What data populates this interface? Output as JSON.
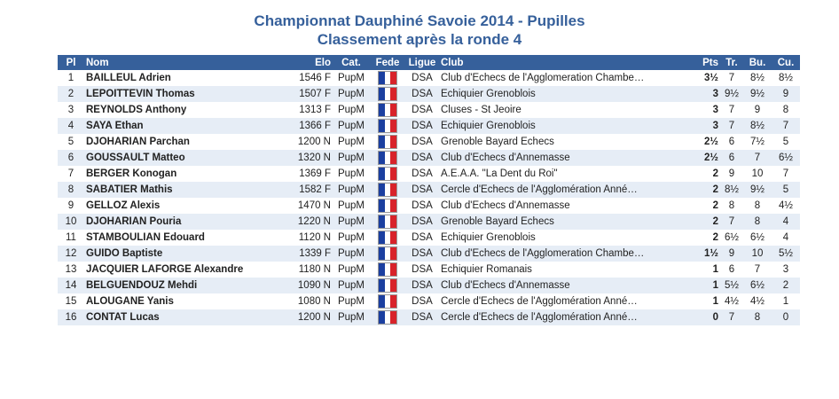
{
  "title": "Championnat Dauphiné Savoie 2014 - Pupilles",
  "subtitle": "Classement après la ronde 4",
  "headers": {
    "pl": "Pl",
    "nom": "Nom",
    "elo": "Elo",
    "cat": "Cat.",
    "fede": "Fede",
    "ligue": "Ligue",
    "club": "Club",
    "pts": "Pts",
    "tr": "Tr.",
    "bu": "Bu.",
    "cu": "Cu."
  },
  "flag_colors": [
    "#1b3fa0",
    "#ffffff",
    "#d8232a"
  ],
  "rows": [
    {
      "pl": "1",
      "nom": "BAILLEUL Adrien",
      "elo": "1546 F",
      "cat": "PupM",
      "ligue": "DSA",
      "club": "Club d'Echecs de l'Agglomeration Chambe…",
      "pts": "3½",
      "tr": "7",
      "bu": "8½",
      "cu": "8½"
    },
    {
      "pl": "2",
      "nom": "LEPOITTEVIN Thomas",
      "elo": "1507 F",
      "cat": "PupM",
      "ligue": "DSA",
      "club": "Echiquier Grenoblois",
      "pts": "3",
      "tr": "9½",
      "bu": "9½",
      "cu": "9"
    },
    {
      "pl": "3",
      "nom": "REYNOLDS Anthony",
      "elo": "1313 F",
      "cat": "PupM",
      "ligue": "DSA",
      "club": "Cluses - St Jeoire",
      "pts": "3",
      "tr": "7",
      "bu": "9",
      "cu": "8"
    },
    {
      "pl": "4",
      "nom": "SAYA Ethan",
      "elo": "1366 F",
      "cat": "PupM",
      "ligue": "DSA",
      "club": "Echiquier Grenoblois",
      "pts": "3",
      "tr": "7",
      "bu": "8½",
      "cu": "7"
    },
    {
      "pl": "5",
      "nom": "DJOHARIAN Parchan",
      "elo": "1200 N",
      "cat": "PupM",
      "ligue": "DSA",
      "club": "Grenoble Bayard Echecs",
      "pts": "2½",
      "tr": "6",
      "bu": "7½",
      "cu": "5"
    },
    {
      "pl": "6",
      "nom": "GOUSSAULT Matteo",
      "elo": "1320 N",
      "cat": "PupM",
      "ligue": "DSA",
      "club": "Club d'Echecs d'Annemasse",
      "pts": "2½",
      "tr": "6",
      "bu": "7",
      "cu": "6½"
    },
    {
      "pl": "7",
      "nom": "BERGER Konogan",
      "elo": "1369 F",
      "cat": "PupM",
      "ligue": "DSA",
      "club": "A.E.A.A. \"La Dent du Roi\"",
      "pts": "2",
      "tr": "9",
      "bu": "10",
      "cu": "7"
    },
    {
      "pl": "8",
      "nom": "SABATIER Mathis",
      "elo": "1582 F",
      "cat": "PupM",
      "ligue": "DSA",
      "club": "Cercle d'Echecs de l'Agglomération Anné…",
      "pts": "2",
      "tr": "8½",
      "bu": "9½",
      "cu": "5"
    },
    {
      "pl": "9",
      "nom": "GELLOZ Alexis",
      "elo": "1470 N",
      "cat": "PupM",
      "ligue": "DSA",
      "club": "Club d'Echecs d'Annemasse",
      "pts": "2",
      "tr": "8",
      "bu": "8",
      "cu": "4½"
    },
    {
      "pl": "10",
      "nom": "DJOHARIAN Pouria",
      "elo": "1220 N",
      "cat": "PupM",
      "ligue": "DSA",
      "club": "Grenoble Bayard Echecs",
      "pts": "2",
      "tr": "7",
      "bu": "8",
      "cu": "4"
    },
    {
      "pl": "11",
      "nom": "STAMBOULIAN Edouard",
      "elo": "1120 N",
      "cat": "PupM",
      "ligue": "DSA",
      "club": "Echiquier Grenoblois",
      "pts": "2",
      "tr": "6½",
      "bu": "6½",
      "cu": "4"
    },
    {
      "pl": "12",
      "nom": "GUIDO Baptiste",
      "elo": "1339 F",
      "cat": "PupM",
      "ligue": "DSA",
      "club": "Club d'Echecs de l'Agglomeration Chambe…",
      "pts": "1½",
      "tr": "9",
      "bu": "10",
      "cu": "5½"
    },
    {
      "pl": "13",
      "nom": "JACQUIER LAFORGE Alexandre",
      "elo": "1180 N",
      "cat": "PupM",
      "ligue": "DSA",
      "club": "Echiquier Romanais",
      "pts": "1",
      "tr": "6",
      "bu": "7",
      "cu": "3"
    },
    {
      "pl": "14",
      "nom": "BELGUENDOUZ Mehdi",
      "elo": "1090 N",
      "cat": "PupM",
      "ligue": "DSA",
      "club": "Club d'Echecs d'Annemasse",
      "pts": "1",
      "tr": "5½",
      "bu": "6½",
      "cu": "2"
    },
    {
      "pl": "15",
      "nom": "ALOUGANE Yanis",
      "elo": "1080 N",
      "cat": "PupM",
      "ligue": "DSA",
      "club": "Cercle d'Echecs de l'Agglomération Anné…",
      "pts": "1",
      "tr": "4½",
      "bu": "4½",
      "cu": "1"
    },
    {
      "pl": "16",
      "nom": "CONTAT Lucas",
      "elo": "1200 N",
      "cat": "PupM",
      "ligue": "DSA",
      "club": "Cercle d'Echecs de l'Agglomération Anné…",
      "pts": "0",
      "tr": "7",
      "bu": "8",
      "cu": "0"
    }
  ]
}
